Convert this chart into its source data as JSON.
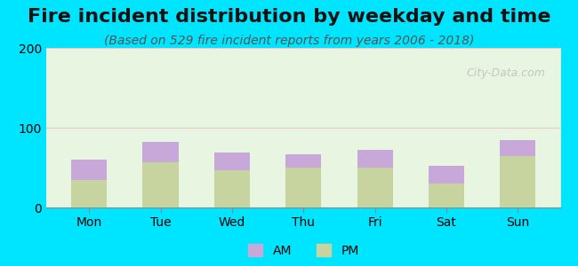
{
  "title": "Fire incident distribution by weekday and time",
  "subtitle": "(Based on 529 fire incident reports from years 2006 - 2018)",
  "categories": [
    "Mon",
    "Tue",
    "Wed",
    "Thu",
    "Fri",
    "Sat",
    "Sun"
  ],
  "pm_values": [
    35,
    57,
    47,
    50,
    50,
    30,
    65
  ],
  "am_values": [
    25,
    25,
    22,
    17,
    22,
    22,
    20
  ],
  "am_color": "#c8a8d8",
  "pm_color": "#c8d4a0",
  "background_outer": "#00e5ff",
  "background_plot_top": "#e8f5e0",
  "ylim": [
    0,
    200
  ],
  "yticks": [
    0,
    100,
    200
  ],
  "bar_width": 0.5,
  "title_fontsize": 16,
  "subtitle_fontsize": 10,
  "tick_fontsize": 10,
  "legend_fontsize": 10,
  "watermark": "City-Data.com"
}
